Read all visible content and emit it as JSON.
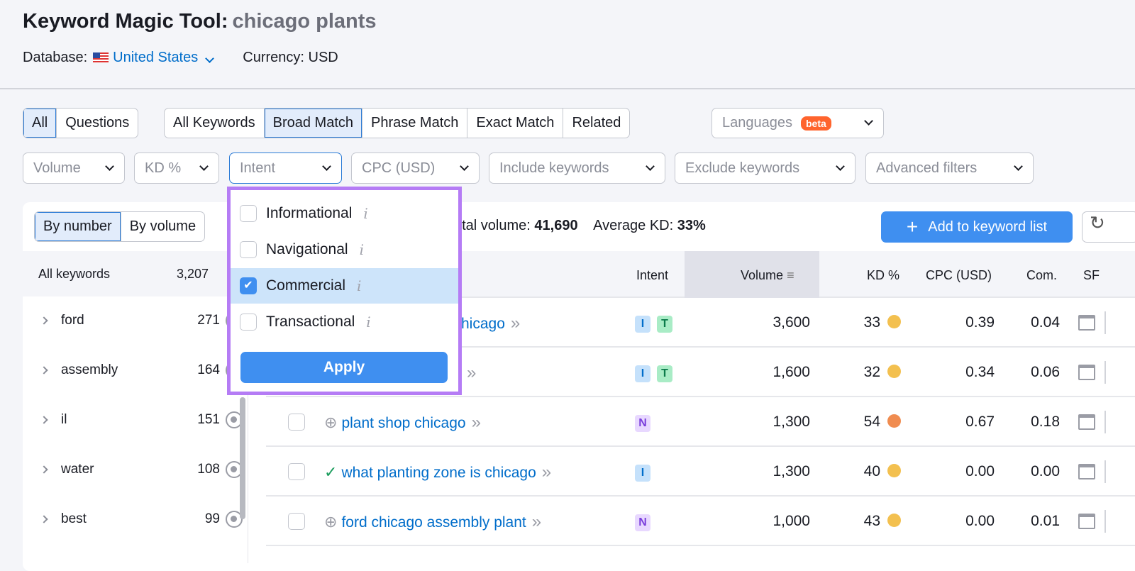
{
  "header": {
    "title": "Keyword Magic Tool:",
    "query": "chicago plants",
    "database_label": "Database:",
    "database_value": "United States",
    "currency": "Currency: USD"
  },
  "tabs1": [
    "All",
    "Questions"
  ],
  "tabs2": [
    "All Keywords",
    "Broad Match",
    "Phrase Match",
    "Exact Match",
    "Related"
  ],
  "languages": {
    "label": "Languages",
    "badge": "beta"
  },
  "filters": [
    "Volume",
    "KD %",
    "Intent",
    "CPC (USD)",
    "Include keywords",
    "Exclude keywords",
    "Advanced filters"
  ],
  "group_tabs": [
    "By number",
    "By volume"
  ],
  "summary": {
    "total_label": "otal volume:",
    "total": "41,690",
    "kd_label": "Average KD:",
    "kd": "33%"
  },
  "add_button": "Add to keyword list",
  "sidebar": {
    "header_label": "All keywords",
    "header_count": "3,207",
    "items": [
      {
        "name": "ford",
        "count": "271"
      },
      {
        "name": "assembly",
        "count": "164"
      },
      {
        "name": "il",
        "count": "151"
      },
      {
        "name": "water",
        "count": "108"
      },
      {
        "name": "best",
        "count": "99"
      }
    ]
  },
  "columns": {
    "intent": "Intent",
    "volume": "Volume",
    "kd": "KD %",
    "cpc": "CPC (USD)",
    "com": "Com.",
    "sf": "SF"
  },
  "rows": [
    {
      "keyword": "hicago",
      "intent": [
        "I",
        "T"
      ],
      "volume": "3,600",
      "kd": "33",
      "kd_color": "#f3c04f",
      "cpc": "0.39",
      "com": "0.04"
    },
    {
      "keyword": "",
      "intent": [
        "I",
        "T"
      ],
      "volume": "1,600",
      "kd": "32",
      "kd_color": "#f3c04f",
      "cpc": "0.34",
      "com": "0.06"
    },
    {
      "keyword": "plant shop chicago",
      "status": "add",
      "intent": [
        "N"
      ],
      "volume": "1,300",
      "kd": "54",
      "kd_color": "#f08c50",
      "cpc": "0.67",
      "com": "0.18"
    },
    {
      "keyword": "what planting zone is chicago",
      "status": "added",
      "intent": [
        "I"
      ],
      "volume": "1,300",
      "kd": "40",
      "kd_color": "#f3c04f",
      "cpc": "0.00",
      "com": "0.00"
    },
    {
      "keyword": "ford chicago assembly plant",
      "status": "add",
      "intent": [
        "N"
      ],
      "volume": "1,000",
      "kd": "43",
      "kd_color": "#f3c04f",
      "cpc": "0.00",
      "com": "0.01"
    }
  ],
  "intent_dropdown": {
    "options": [
      {
        "label": "Informational",
        "checked": false
      },
      {
        "label": "Navigational",
        "checked": false
      },
      {
        "label": "Commercial",
        "checked": true
      },
      {
        "label": "Transactional",
        "checked": false
      }
    ],
    "apply": "Apply"
  }
}
